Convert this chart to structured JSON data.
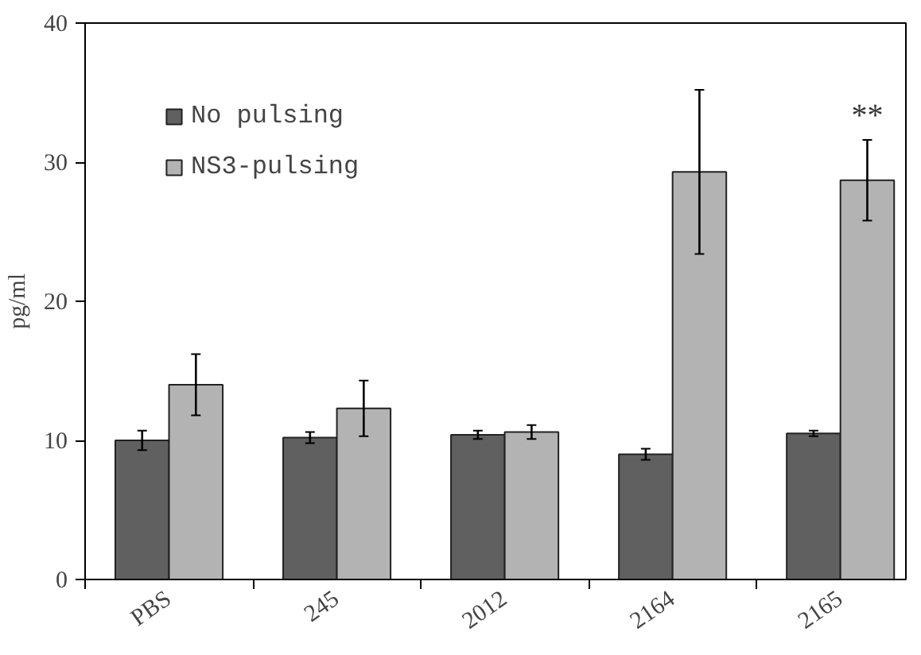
{
  "chart_data": {
    "type": "bar",
    "ylabel": "pg/ml",
    "categories": [
      "PBS",
      "245",
      "2012",
      "2164",
      "2165"
    ],
    "series": [
      {
        "name": "No pulsing",
        "color": "#606060",
        "values": [
          10.0,
          10.2,
          10.4,
          9.0,
          10.5
        ],
        "errors": [
          0.7,
          0.4,
          0.3,
          0.4,
          0.2
        ]
      },
      {
        "name": "NS3-pulsing",
        "color": "#b3b3b3",
        "values": [
          14.0,
          12.3,
          10.6,
          29.3,
          28.7
        ],
        "errors": [
          2.2,
          2.0,
          0.5,
          5.9,
          2.9
        ]
      }
    ],
    "ylim": [
      0,
      40
    ],
    "yticks": [
      0,
      10,
      20,
      30,
      40
    ],
    "grid": false,
    "legend": "top left",
    "annotations": [
      "**"
    ]
  }
}
